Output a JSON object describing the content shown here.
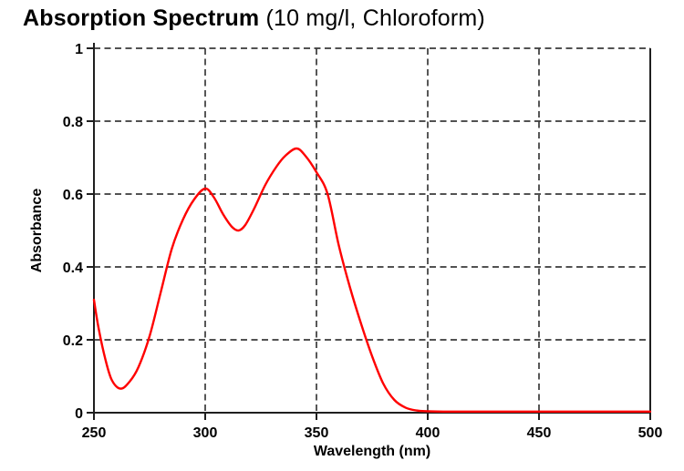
{
  "header": {
    "title_bold": "Absorption Spectrum",
    "title_paren": " (10 mg/l, Chloroform)"
  },
  "chart_data": {
    "type": "line",
    "title": "Absorption Spectrum (10 mg/l, Chloroform)",
    "xlabel": "Wavelength (nm)",
    "ylabel": "Absorbance",
    "xlim": [
      250,
      500
    ],
    "ylim": [
      0,
      1
    ],
    "x_ticks": [
      250,
      300,
      350,
      400,
      450,
      500
    ],
    "y_ticks": [
      0,
      0.2,
      0.4,
      0.6,
      0.8,
      1
    ],
    "grid": "dashed",
    "legend": "none",
    "colors": {
      "line": "#ff0000",
      "grid": "#3a3a3a",
      "axis": "#1f1f1f",
      "text": "#000000",
      "background": "#ffffff"
    },
    "series": [
      {
        "name": "Absorbance, 10 mg/l in Chloroform",
        "x": [
          250,
          252,
          255,
          258,
          262,
          266,
          270,
          275,
          280,
          285,
          290,
          295,
          300,
          304,
          308,
          312,
          315,
          318,
          322,
          327,
          332,
          336,
          341,
          345,
          350,
          355,
          360,
          365,
          370,
          375,
          380,
          385,
          390,
          395,
          400,
          410,
          425,
          450,
          475,
          500
        ],
        "y": [
          0.31,
          0.235,
          0.15,
          0.09,
          0.066,
          0.085,
          0.125,
          0.21,
          0.33,
          0.45,
          0.53,
          0.585,
          0.615,
          0.59,
          0.545,
          0.51,
          0.5,
          0.515,
          0.56,
          0.625,
          0.675,
          0.705,
          0.725,
          0.705,
          0.66,
          0.6,
          0.46,
          0.345,
          0.245,
          0.155,
          0.08,
          0.035,
          0.014,
          0.006,
          0.004,
          0.003,
          0.003,
          0.003,
          0.003,
          0.003
        ]
      }
    ],
    "annotations": {
      "peak_1": {
        "wavelength_nm": 300,
        "absorbance": 0.62
      },
      "local_min": {
        "wavelength_nm": 315,
        "absorbance": 0.5
      },
      "peak_2": {
        "wavelength_nm": 341,
        "absorbance": 0.725
      }
    }
  }
}
